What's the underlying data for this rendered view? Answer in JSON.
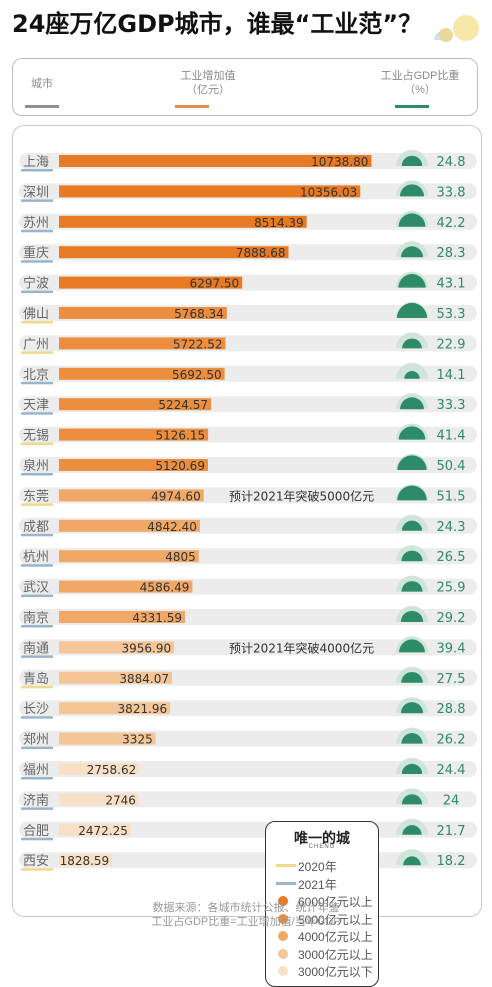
{
  "title": "24座万亿GDP城市，谁最“工业范”？",
  "header": {
    "city_label": "城市",
    "value_label_line1": "工业增加值",
    "value_label_line2": "（亿元）",
    "ratio_label_line1": "工业占GDP比重",
    "ratio_label_line2": "（%）"
  },
  "colors": {
    "line_2020": "#f1d98c",
    "line_2021": "#98b6cb",
    "header_gray": "#8f8f8f",
    "header_orange": "#e0914a",
    "header_green": "#2e8b68",
    "gauge_green": "#2e8b68",
    "gauge_bg": "#cfe4da",
    "track": "#ececec",
    "tier_6000": "#e77a22",
    "tier_5000": "#ec8e3e",
    "tier_4000": "#f1a866",
    "tier_3000": "#f4c597",
    "tier_below": "#f8e0c6"
  },
  "chart_data": {
    "type": "bar",
    "orientation": "horizontal",
    "categories": [
      "上海",
      "深圳",
      "苏州",
      "重庆",
      "宁波",
      "佛山",
      "广州",
      "北京",
      "天津",
      "无锡",
      "泉州",
      "东莞",
      "成都",
      "杭州",
      "武汉",
      "南京",
      "南通",
      "青岛",
      "长沙",
      "郑州",
      "福州",
      "济南",
      "合肥",
      "西安"
    ],
    "series": [
      {
        "values": [
          10738.8,
          10356.03,
          8514.39,
          7888.68,
          6297.5,
          5768.34,
          5722.52,
          5692.5,
          5224.57,
          5126.15,
          5120.69,
          4974.6,
          4842.4,
          4805,
          4586.49,
          4331.59,
          3956.9,
          3884.07,
          3821.96,
          3325,
          2758.62,
          2746,
          2472.25,
          1828.59
        ],
        "value_labels": [
          "10738.80",
          "10356.03",
          "8514.39",
          "7888.68",
          "6297.50",
          "5768.34",
          "5722.52",
          "5692.50",
          "5224.57",
          "5126.15",
          "5120.69",
          "4974.60",
          "4842.40",
          "4805",
          "4586.49",
          "4331.59",
          "3956.90",
          "3884.07",
          "3821.96",
          "3325",
          "2758.62",
          "2746",
          "2472.25",
          "1828.59"
        ]
      },
      {
        "values": [
          24.8,
          33.8,
          42.2,
          28.3,
          43.1,
          53.3,
          22.9,
          14.1,
          33.3,
          41.4,
          50.4,
          51.5,
          24.3,
          26.5,
          25.9,
          29.2,
          39.4,
          27.5,
          28.8,
          26.2,
          24.4,
          24,
          21.7,
          18.2
        ],
        "value_labels": [
          "24.8",
          "33.8",
          "42.2",
          "28.3",
          "43.1",
          "53.3",
          "22.9",
          "14.1",
          "33.3",
          "41.4",
          "50.4",
          "51.5",
          "24.3",
          "26.5",
          "25.9",
          "29.2",
          "39.4",
          "27.5",
          "28.8",
          "26.2",
          "24.4",
          "24",
          "21.7",
          "18.2"
        ]
      }
    ],
    "city_underline_year": [
      "2021",
      "2021",
      "2021",
      "2021",
      "2021",
      "2020",
      "2020",
      "2021",
      "2021",
      "2020",
      "2021",
      "2020",
      "2021",
      "2021",
      "2021",
      "2021",
      "2021",
      "2020",
      "2021",
      "2021",
      "2021",
      "2021",
      "2021",
      "2020"
    ],
    "annotations": [
      {
        "city": "东莞",
        "text": "预计2021年突破5000亿元"
      },
      {
        "city": "南通",
        "text": "预计2021年突破4000亿元"
      }
    ],
    "legend": {
      "title": "唯一的城",
      "subtitle": "CHENG",
      "items": [
        {
          "label": "2020年",
          "kind": "line",
          "color": "#f1d98c"
        },
        {
          "label": "2021年",
          "kind": "line",
          "color": "#98b6cb"
        },
        {
          "label": "6000亿元以上",
          "kind": "dot",
          "color": "#e77a22"
        },
        {
          "label": "5000亿元以上",
          "kind": "dot",
          "color": "#ec8e3e"
        },
        {
          "label": "4000亿元以上",
          "kind": "dot",
          "color": "#f1a866"
        },
        {
          "label": "3000亿元以上",
          "kind": "dot",
          "color": "#f4c597"
        },
        {
          "label": "3000亿元以下",
          "kind": "dot",
          "color": "#f8e0c6"
        }
      ]
    },
    "xlim": [
      0,
      11000
    ]
  },
  "source": {
    "line1": "数据来源：各城市统计公报、统计年鉴",
    "line2": "工业占GDP比重=工业增加值/当年GDP"
  }
}
